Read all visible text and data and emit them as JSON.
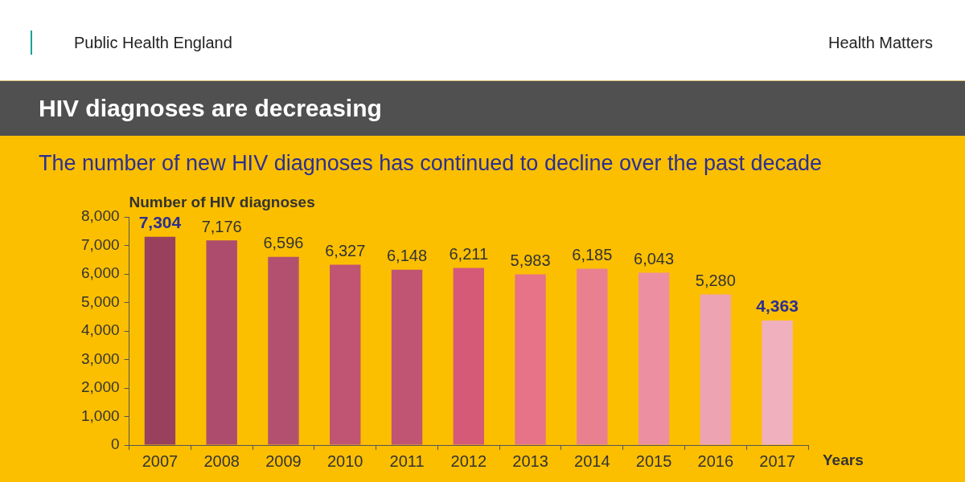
{
  "chart_data": {
    "type": "bar",
    "title": "HIV diagnoses are decreasing",
    "subtitle": "The number of new HIV diagnoses has continued to decline over the past decade",
    "annotations": [
      "Public Health England",
      "Health Matters"
    ],
    "ylabel": "Number of HIV diagnoses",
    "xlabel": "Years",
    "categories": [
      "2007",
      "2008",
      "2009",
      "2010",
      "2011",
      "2012",
      "2013",
      "2014",
      "2015",
      "2016",
      "2017"
    ],
    "values": [
      7304,
      7176,
      6596,
      6327,
      6148,
      6211,
      5983,
      6185,
      6043,
      5280,
      4363
    ],
    "value_labels": [
      "7,304",
      "7,176",
      "6,596",
      "6,327",
      "6,148",
      "6,211",
      "5,983",
      "6,185",
      "6,043",
      "5,280",
      "4,363"
    ],
    "colors": [
      "#99405c",
      "#ad4c6c",
      "#b4506f",
      "#c05473",
      "#c05473",
      "#d45a78",
      "#e67388",
      "#e8808f",
      "#ec8fa1",
      "#eea3b3",
      "#f0b0bd"
    ],
    "ylim": [
      0,
      8000
    ],
    "yticks": [
      0,
      {
        "value": 1000,
        "label": "1,000"
      },
      {
        "value": 2000,
        "label": "2,000"
      },
      {
        "value": 3000,
        "label": "3,000"
      },
      {
        "value": 4000,
        "label": "4,000"
      },
      {
        "value": 5000,
        "label": "5,000"
      },
      {
        "value": 6000,
        "label": "6,000"
      },
      {
        "value": 7000,
        "label": "7,000"
      },
      {
        "value": 8000,
        "label": "8,000"
      }
    ],
    "grid": false,
    "legend": false
  }
}
